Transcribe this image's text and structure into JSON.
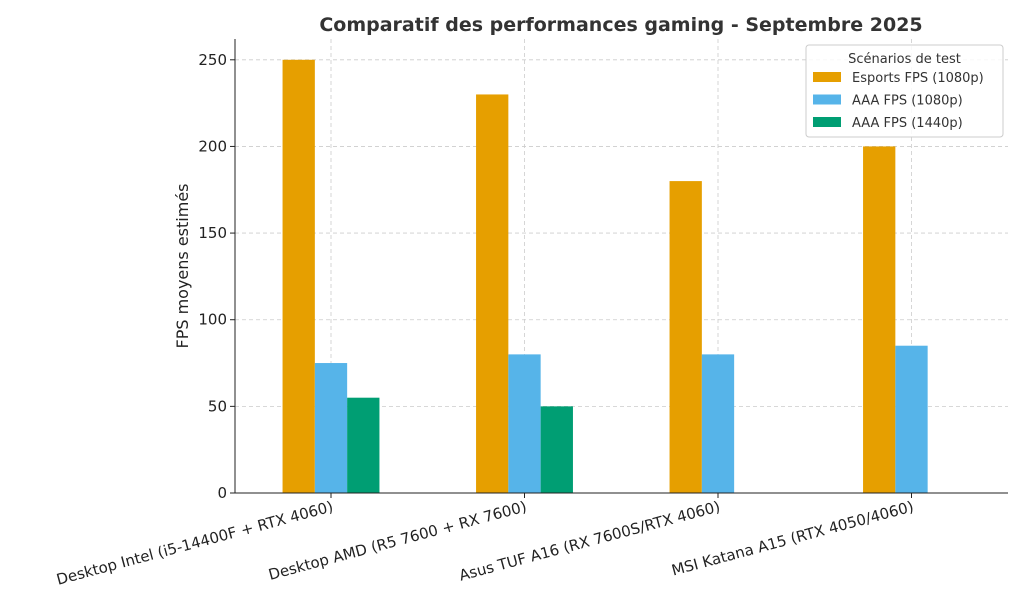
{
  "chart_data": {
    "type": "bar",
    "title": "Comparatif des performances gaming - Septembre 2025",
    "xlabel": "",
    "ylabel": "FPS moyens estimés",
    "ylim": [
      0,
      262
    ],
    "yticks": [
      0,
      50,
      100,
      150,
      200,
      250
    ],
    "grid": true,
    "legend": {
      "title": "Scénarios de test",
      "placement": "top-right"
    },
    "categories": [
      "Desktop Intel (i5-14400F + RTX 4060)",
      "Desktop AMD (R5 7600 + RX 7600)",
      "Asus TUF A16 (RX 7600S/RTX 4060)",
      "MSI Katana A15 (RTX 4050/4060)"
    ],
    "series": [
      {
        "name": "Esports FPS (1080p)",
        "color": "#E69F00",
        "values": [
          250,
          230,
          180,
          200
        ]
      },
      {
        "name": "AAA FPS (1080p)",
        "color": "#56B4E9",
        "values": [
          75,
          80,
          80,
          85
        ]
      },
      {
        "name": "AAA FPS (1440p)",
        "color": "#009E73",
        "values": [
          55,
          50,
          null,
          null
        ]
      }
    ]
  }
}
